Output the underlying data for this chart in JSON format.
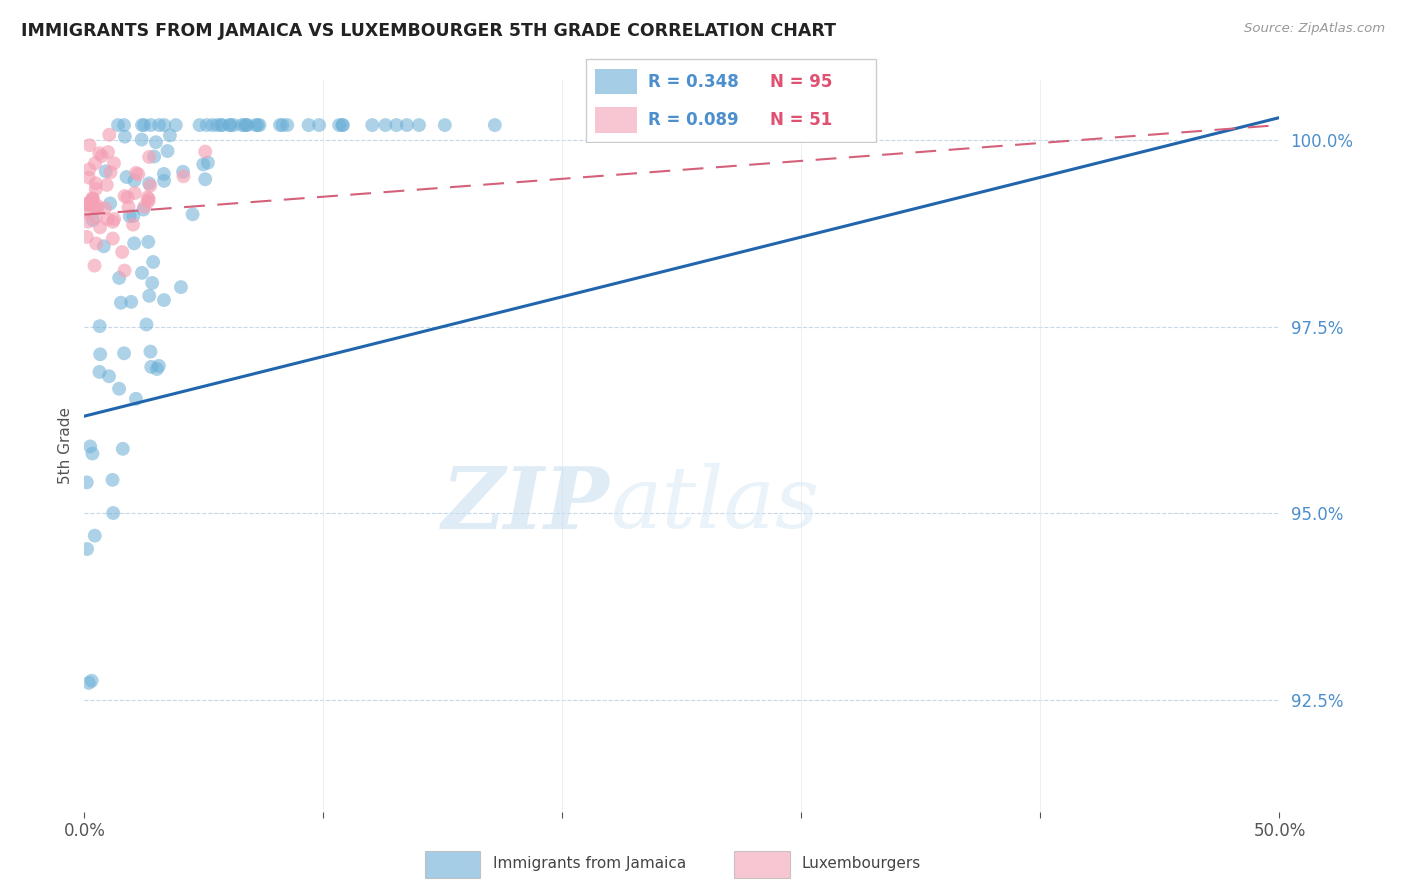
{
  "title": "IMMIGRANTS FROM JAMAICA VS LUXEMBOURGER 5TH GRADE CORRELATION CHART",
  "source": "Source: ZipAtlas.com",
  "ylabel": "5th Grade",
  "watermark_zip": "ZIP",
  "watermark_atlas": "atlas",
  "xlim": [
    0.0,
    0.5
  ],
  "ylim": [
    0.91,
    1.008
  ],
  "yticks": [
    0.925,
    0.95,
    0.975,
    1.0
  ],
  "ytick_labels": [
    "92.5%",
    "95.0%",
    "97.5%",
    "100.0%"
  ],
  "xtick_vals": [
    0.0,
    0.1,
    0.2,
    0.3,
    0.4,
    0.5
  ],
  "xtick_labels": [
    "0.0%",
    "",
    "",
    "",
    "",
    "50.0%"
  ],
  "blue_color": "#6aaed6",
  "pink_color": "#f4a0b5",
  "blue_line_color": "#2166ac",
  "pink_line_color": "#d4607a",
  "legend_R_blue": "R = 0.348",
  "legend_N_blue": "N = 95",
  "legend_R_pink": "R = 0.089",
  "legend_N_pink": "N = 51",
  "blue_R": 0.348,
  "pink_R": 0.089,
  "blue_N": 95,
  "pink_N": 51,
  "blue_line_x0": 0.0,
  "blue_line_y0": 0.963,
  "blue_line_x1": 0.5,
  "blue_line_y1": 1.003,
  "pink_line_x0": 0.0,
  "pink_line_y0": 0.99,
  "pink_line_x1": 0.5,
  "pink_line_y1": 1.002
}
